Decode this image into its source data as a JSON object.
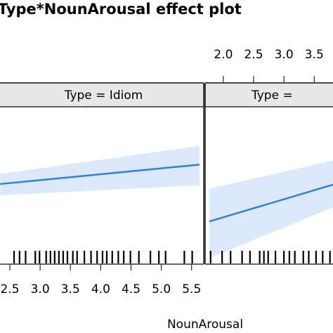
{
  "chart_data": {
    "type": "line",
    "title": "Type*NounArousal effect plot",
    "xlabel": "NounArousal",
    "xlim": [
      1.7,
      5.7
    ],
    "ylim": [
      0,
      1
    ],
    "xticks": [
      {
        "value": 2,
        "label": "2.0"
      },
      {
        "value": 2.5,
        "label": "2.5"
      },
      {
        "value": 3,
        "label": "3.0"
      },
      {
        "value": 3.5,
        "label": "3.5"
      },
      {
        "value": 4,
        "label": "4.0"
      },
      {
        "value": 4.5,
        "label": "4.5"
      },
      {
        "value": 5,
        "label": "5.0"
      },
      {
        "value": 5.5,
        "label": "5.5"
      }
    ],
    "color": "#2f7fe0",
    "band_color": "#dce9fb",
    "panels": [
      {
        "strip": "Type = Idiom",
        "x": [
          2.34,
          5.63
        ],
        "fit": [
          0.533,
          0.662
        ],
        "lower": [
          0.458,
          0.524
        ],
        "upper": [
          0.6,
          0.787
        ],
        "rug": [
          2.57,
          2.66,
          2.76,
          2.92,
          2.99,
          3.1,
          3.17,
          3.24,
          3.31,
          3.38,
          3.45,
          3.54,
          3.61,
          3.73,
          3.84,
          3.94,
          4.03,
          4.1,
          4.19,
          4.29,
          4.38,
          4.49,
          4.63,
          4.82,
          4.96,
          5.07,
          5.38,
          5.51
        ]
      },
      {
        "strip": "Type =",
        "x": [
          1.77,
          3.81
        ],
        "fit": [
          0.284,
          0.529
        ],
        "lower": [
          0.04,
          0.378
        ],
        "upper": [
          0.502,
          0.689
        ],
        "rug": [
          1.79,
          1.98,
          2.12,
          2.31,
          2.44,
          2.6,
          2.67,
          2.74,
          2.86,
          3.0,
          3.09,
          3.18,
          3.32,
          3.41,
          3.53,
          3.64,
          3.76
        ]
      }
    ]
  }
}
